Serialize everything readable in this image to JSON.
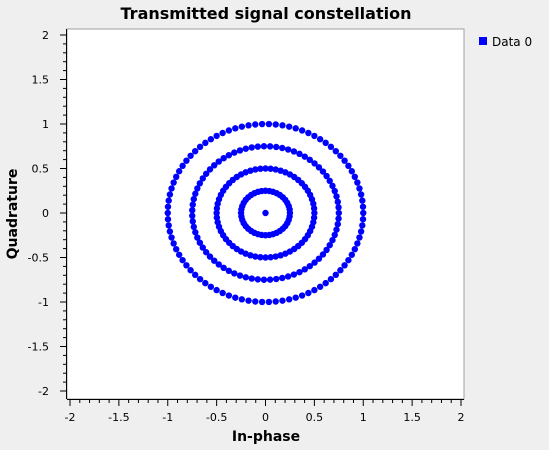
{
  "chart_data": {
    "type": "scatter",
    "title": "Transmitted signal constellation",
    "xlabel": "In-phase",
    "ylabel": "Quadrature",
    "xlim": [
      -2,
      2
    ],
    "ylim": [
      -2,
      2
    ],
    "xticks": [
      "-2",
      "-1.5",
      "-1",
      "-0.5",
      "0",
      "0.5",
      "1",
      "1.5",
      "2"
    ],
    "yticks": [
      "2",
      "1.5",
      "1",
      "0.5",
      "0",
      "-0.5",
      "-1",
      "-1.5",
      "-2"
    ],
    "grid": false,
    "legend_position": "right",
    "series": [
      {
        "name": "Data 0",
        "color": "#0000ff",
        "marker": "circle",
        "rings": [
          {
            "radius": 0.0,
            "points": 1
          },
          {
            "radius": 0.25,
            "points": 40
          },
          {
            "radius": 0.5,
            "points": 60
          },
          {
            "radius": 0.75,
            "points": 75
          },
          {
            "radius": 1.0,
            "points": 90
          }
        ]
      }
    ]
  }
}
